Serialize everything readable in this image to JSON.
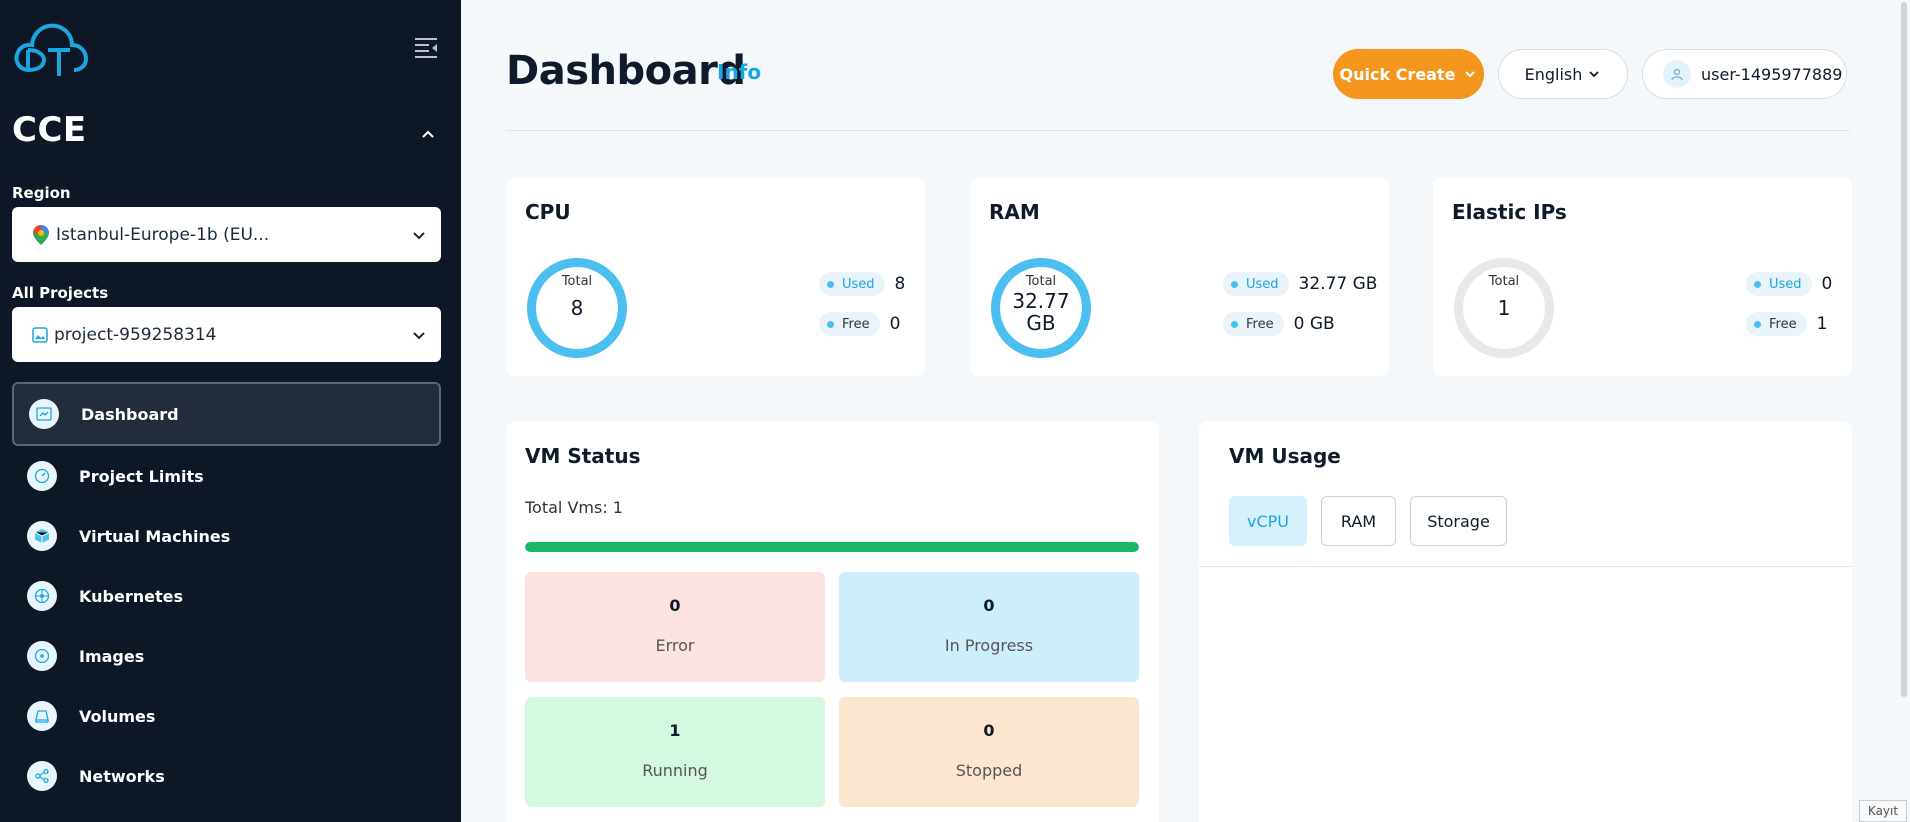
{
  "app": {
    "section_title": "CCE"
  },
  "sidebar": {
    "region_label": "Region",
    "region_value": "Istanbul-Europe-1b (EU...",
    "projects_label": "All Projects",
    "project_value": "project-959258314",
    "items": [
      {
        "label": "Dashboard",
        "icon": "dashboard-icon",
        "active": true
      },
      {
        "label": "Project Limits",
        "icon": "gauge-icon"
      },
      {
        "label": "Virtual Machines",
        "icon": "cube-icon"
      },
      {
        "label": "Kubernetes",
        "icon": "kubernetes-icon"
      },
      {
        "label": "Images",
        "icon": "disc-icon"
      },
      {
        "label": "Volumes",
        "icon": "volume-icon"
      },
      {
        "label": "Networks",
        "icon": "share-icon"
      }
    ]
  },
  "header": {
    "title": "Dashboard",
    "info": "Info",
    "quick_create": "Quick Create",
    "language": "English",
    "user": "user-1495977889"
  },
  "cards": {
    "cpu": {
      "title": "CPU",
      "total_label": "Total",
      "total": "8",
      "used_label": "Used",
      "used": "8",
      "free_label": "Free",
      "free": "0",
      "used_fraction": 1.0
    },
    "ram": {
      "title": "RAM",
      "total_label": "Total",
      "total_line1": "32.77",
      "total_line2": "GB",
      "used_label": "Used",
      "used": "32.77 GB",
      "free_label": "Free",
      "free": "0 GB",
      "used_fraction": 1.0
    },
    "eip": {
      "title": "Elastic IPs",
      "total_label": "Total",
      "total": "1",
      "used_label": "Used",
      "used": "0",
      "free_label": "Free",
      "free": "1",
      "used_fraction": 0.0
    }
  },
  "vm_status": {
    "title": "VM Status",
    "total": "Total Vms: 1",
    "progress_fraction": 1.0,
    "boxes": [
      {
        "value": "0",
        "label": "Error"
      },
      {
        "value": "0",
        "label": "In Progress"
      },
      {
        "value": "1",
        "label": "Running"
      },
      {
        "value": "0",
        "label": "Stopped"
      }
    ]
  },
  "vm_usage": {
    "title": "VM Usage",
    "tabs": [
      "vCPU",
      "RAM",
      "Storage"
    ],
    "active_tab": "vCPU"
  },
  "footer": {
    "kayit": "Kayıt"
  },
  "colors": {
    "sidebar_bg": "#0d1726",
    "accent_blue": "#4bc0f0",
    "quick_create": "#f4951d",
    "error_bg": "#fde2e2",
    "progress_bg": "#cdeefa",
    "running_bg": "#d4f8e0",
    "stopped_bg": "#fde6cf",
    "progress_bar": "#1db56a"
  }
}
